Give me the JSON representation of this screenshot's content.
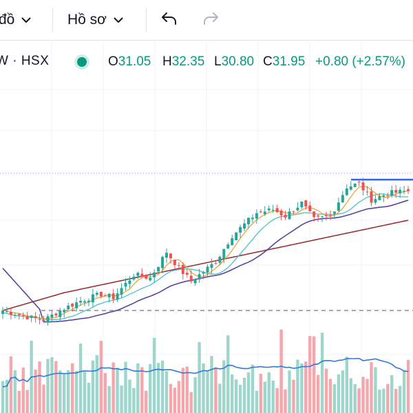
{
  "toolbar": {
    "chart_type_label": "đồ",
    "profile_label": "Hồ sơ"
  },
  "legend": {
    "symbol": "W · HSX",
    "open_key": "O",
    "open": "31.05",
    "high_key": "H",
    "high": "32.35",
    "low_key": "L",
    "low": "30.80",
    "close_key": "C",
    "close": "31.95",
    "change": "+0.80 (+2.57%)"
  },
  "colors": {
    "up": "#26a69a",
    "down": "#ef5350",
    "vol_up": "#9ed6cc",
    "vol_down": "#f4a7ad",
    "ma_fast": "#f0a33a",
    "ma_mid": "#4bc0c8",
    "ma_slow": "#5b3fa5",
    "ma_long": "#9b3033",
    "vol_ma": "#2e7bd6",
    "hline": "#2962ff",
    "dash": "#787b86"
  },
  "icons": [
    "chevron-down-icon",
    "undo-icon",
    "redo-icon",
    "status-dot-icon"
  ],
  "chart_data": {
    "type": "candlestick",
    "y_top_dotted": 32.4,
    "resistance_level": 32.6,
    "support_level": 24.6,
    "close_path": [
      [
        0,
        24.6
      ],
      [
        6,
        24.2
      ],
      [
        10,
        24.0
      ],
      [
        14,
        24.6
      ],
      [
        19,
        25.2
      ],
      [
        24,
        25.6
      ],
      [
        27,
        25.4
      ],
      [
        32,
        26.8
      ],
      [
        36,
        26.6
      ],
      [
        40,
        28.2
      ],
      [
        43,
        27.2
      ],
      [
        46,
        26.4
      ],
      [
        52,
        27.6
      ],
      [
        56,
        29.2
      ],
      [
        62,
        30.6
      ],
      [
        66,
        30.8
      ],
      [
        69,
        30.4
      ],
      [
        73,
        31.2
      ],
      [
        76,
        30.2
      ],
      [
        80,
        30.4
      ],
      [
        84,
        32.2
      ],
      [
        87,
        32.4
      ],
      [
        90,
        31.4
      ],
      [
        94,
        31.8
      ],
      [
        99,
        31.95
      ]
    ],
    "volume_ma_path": [
      [
        0,
        1.6
      ],
      [
        20,
        1.9
      ],
      [
        35,
        2.0
      ],
      [
        50,
        2.3
      ],
      [
        62,
        2.7
      ],
      [
        75,
        2.9
      ],
      [
        87,
        3.2
      ],
      [
        95,
        3.3
      ],
      [
        99,
        3.0
      ]
    ],
    "ma_fast_period": 5,
    "ma_mid_period": 10,
    "ma_slow_period": 20,
    "ma_long_period": 50
  }
}
